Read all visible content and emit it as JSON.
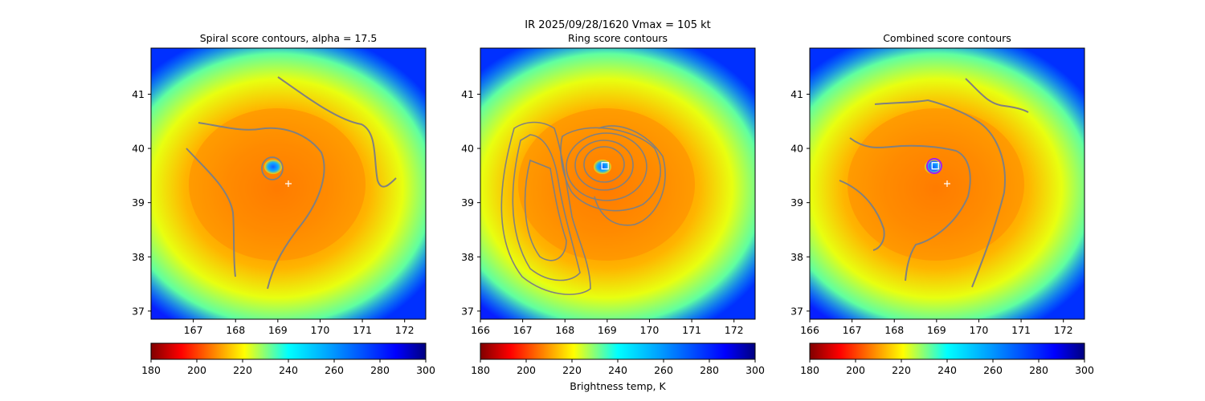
{
  "suptitle_line1": "IR  2025/09/28/1620    Vmax = 105 kt",
  "colorbar_label": "Brightness temp, K",
  "colormap": "jet_r",
  "contour_color": "#808080",
  "marker_color": "#ffffff",
  "chart_data": [
    {
      "type": "heatmap",
      "title": "Spiral score contours, alpha = 17.5",
      "xlim": [
        166.0,
        172.5
      ],
      "ylim": [
        36.85,
        41.85
      ],
      "xticks": [
        167,
        168,
        169,
        170,
        171,
        172
      ],
      "yticks": [
        37,
        38,
        39,
        40,
        41
      ],
      "colorbar": {
        "vmin": 180,
        "vmax": 300,
        "ticks": [
          180,
          200,
          220,
          240,
          260,
          280,
          300
        ]
      },
      "markers": [
        {
          "kind": "plus",
          "lon": 169.25,
          "lat": 39.35
        }
      ]
    },
    {
      "type": "heatmap",
      "title": "Ring score contours",
      "xlim": [
        166.0,
        172.5
      ],
      "ylim": [
        36.85,
        41.85
      ],
      "xticks": [
        166,
        167,
        168,
        169,
        170,
        171,
        172
      ],
      "yticks": [
        37,
        38,
        39,
        40,
        41
      ],
      "colorbar": {
        "vmin": 180,
        "vmax": 300,
        "ticks": [
          180,
          200,
          220,
          240,
          260,
          280,
          300
        ]
      },
      "markers": [
        {
          "kind": "square",
          "lon": 168.95,
          "lat": 39.68
        }
      ]
    },
    {
      "type": "heatmap",
      "title": "Combined score contours",
      "xlim": [
        166.0,
        172.5
      ],
      "ylim": [
        36.85,
        41.85
      ],
      "xticks": [
        166,
        167,
        168,
        169,
        170,
        171,
        172
      ],
      "yticks": [
        37,
        38,
        39,
        40,
        41
      ],
      "colorbar": {
        "vmin": 180,
        "vmax": 300,
        "ticks": [
          180,
          200,
          220,
          240,
          260,
          280,
          300
        ]
      },
      "markers": [
        {
          "kind": "plus",
          "lon": 169.25,
          "lat": 39.35
        },
        {
          "kind": "square",
          "lon": 168.97,
          "lat": 39.68
        }
      ]
    }
  ]
}
